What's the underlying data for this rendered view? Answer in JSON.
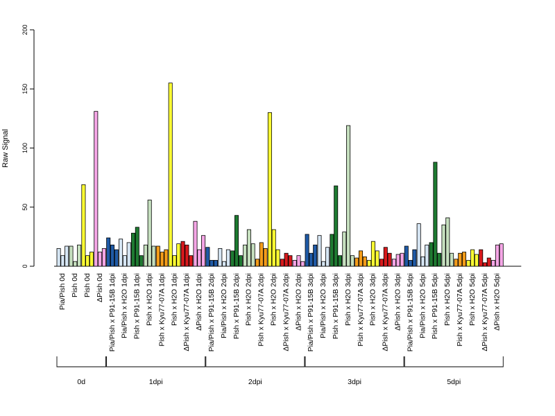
{
  "chart_data": {
    "type": "bar",
    "ylabel": "Raw Signal",
    "ylim": [
      0,
      200
    ],
    "yticks": [
      "0",
      "50",
      "100",
      "150",
      "200"
    ],
    "colors": [
      "#d6e6f4",
      "#ffffff",
      "#1f5aa6",
      "#c6e0bf",
      "#1e7a31",
      "#f39c1a",
      "#ffff33",
      "#d7191c",
      "#f5a6e6"
    ],
    "categories": [
      {
        "label": "Pia/Pish 0d",
        "values": [
          15,
          9,
          17
        ],
        "color": "#d6e6f4"
      },
      {
        "label": "Pish 0d",
        "values": [
          17,
          4,
          18
        ],
        "color": "#c6e0bf"
      },
      {
        "label": "Pish 0d",
        "values": [
          69,
          9,
          12
        ],
        "color": "#ffff33"
      },
      {
        "label": "ΔPish 0d",
        "values": [
          131,
          12,
          15
        ],
        "color": "#f5a6e6"
      },
      {
        "label": "Pia/Pish x P91-15B 1dpi",
        "values": [
          24,
          18,
          14
        ],
        "color": "#1f5aa6"
      },
      {
        "label": "Pia/Pish x H2O 1dpi",
        "values": [
          23,
          9,
          20
        ],
        "color": "#d6e6f4"
      },
      {
        "label": "Pish x P91-15B 1dpi",
        "values": [
          28,
          33,
          9
        ],
        "color": "#1e7a31"
      },
      {
        "label": "Pish x H2O 1dpi",
        "values": [
          18,
          56,
          17
        ],
        "color": "#c6e0bf"
      },
      {
        "label": "Pish x Kyu77-07A 1dpi",
        "values": [
          17,
          12,
          14
        ],
        "color": "#f39c1a"
      },
      {
        "label": "Pish x H2O 1dpi",
        "values": [
          155,
          9,
          19
        ],
        "color": "#ffff33"
      },
      {
        "label": "ΔPish x Kyu77-07A 1dpi",
        "values": [
          21,
          18,
          9
        ],
        "color": "#d7191c"
      },
      {
        "label": "ΔPish x H2O 1dpi",
        "values": [
          38,
          14,
          26
        ],
        "color": "#f5a6e6"
      },
      {
        "label": "Pia/Pish x P91-15B 2dpi",
        "values": [
          16,
          5,
          5
        ],
        "color": "#1f5aa6"
      },
      {
        "label": "Pia/Pish x H2O 2dpi",
        "values": [
          15,
          4,
          14
        ],
        "color": "#d6e6f4"
      },
      {
        "label": "Pish x P91-15B 2dpi",
        "values": [
          13,
          43,
          9
        ],
        "color": "#1e7a31"
      },
      {
        "label": "Pish x H2O 2dpi",
        "values": [
          18,
          31,
          19
        ],
        "color": "#c6e0bf"
      },
      {
        "label": "Pish x Kyu77-07A 2dpi",
        "values": [
          6,
          20,
          15
        ],
        "color": "#f39c1a"
      },
      {
        "label": "Pish x H2O 2dpi",
        "values": [
          130,
          31,
          14
        ],
        "color": "#ffff33"
      },
      {
        "label": "ΔPish x Kyu77-07A 2dpi",
        "values": [
          6,
          11,
          9
        ],
        "color": "#d7191c"
      },
      {
        "label": "ΔPish x H2O 2dpi",
        "values": [
          5,
          9,
          4
        ],
        "color": "#f5a6e6"
      },
      {
        "label": "Pia/Pish x P91-15B 3dpi",
        "values": [
          27,
          11,
          18
        ],
        "color": "#1f5aa6"
      },
      {
        "label": "Pia/Pish x H2O 3dpi",
        "values": [
          26,
          4,
          16
        ],
        "color": "#d6e6f4"
      },
      {
        "label": "Pish x P91-15B 3dpi",
        "values": [
          27,
          68,
          9
        ],
        "color": "#1e7a31"
      },
      {
        "label": "Pish x H2O 3dpi",
        "values": [
          29,
          119,
          9
        ],
        "color": "#c6e0bf"
      },
      {
        "label": "Pish x Kyu77-07A 3dpi",
        "values": [
          7,
          13,
          8
        ],
        "color": "#f39c1a"
      },
      {
        "label": "Pish x H2O 3dpi",
        "values": [
          5,
          21,
          13
        ],
        "color": "#ffff33"
      },
      {
        "label": "ΔPish x Kyu77-07A 3dpi",
        "values": [
          6,
          16,
          11
        ],
        "color": "#d7191c"
      },
      {
        "label": "ΔPish x H2O 3dpi",
        "values": [
          6,
          10,
          11
        ],
        "color": "#f5a6e6"
      },
      {
        "label": "Pia/Pish x P91-15B 5dpi",
        "values": [
          17,
          5,
          14
        ],
        "color": "#1f5aa6"
      },
      {
        "label": "Pia/Pish x H2O 5dpi",
        "values": [
          36,
          8,
          18
        ],
        "color": "#d6e6f4"
      },
      {
        "label": "Pish x P91-15B 5dpi",
        "values": [
          20,
          88,
          11
        ],
        "color": "#1e7a31"
      },
      {
        "label": "Pish x H2O 5dpi",
        "values": [
          35,
          41,
          11
        ],
        "color": "#c6e0bf"
      },
      {
        "label": "Pish x Kyu77-07A 5dpi",
        "values": [
          6,
          11,
          12
        ],
        "color": "#f39c1a"
      },
      {
        "label": "Pish x H2O 5dpi",
        "values": [
          5,
          14,
          10
        ],
        "color": "#ffff33"
      },
      {
        "label": "ΔPish x Kyu77-07A 5dpi",
        "values": [
          14,
          3,
          7
        ],
        "color": "#d7191c"
      },
      {
        "label": "ΔPish x H2O 5dpi",
        "values": [
          5,
          18,
          19
        ],
        "color": "#f5a6e6"
      }
    ],
    "groups": [
      {
        "label": "0d",
        "first": 0,
        "last": 3
      },
      {
        "label": "1dpi",
        "first": 4,
        "last": 11
      },
      {
        "label": "2dpi",
        "first": 12,
        "last": 19
      },
      {
        "label": "3dpi",
        "first": 20,
        "last": 27
      },
      {
        "label": "5dpi",
        "first": 28,
        "last": 35
      }
    ]
  }
}
